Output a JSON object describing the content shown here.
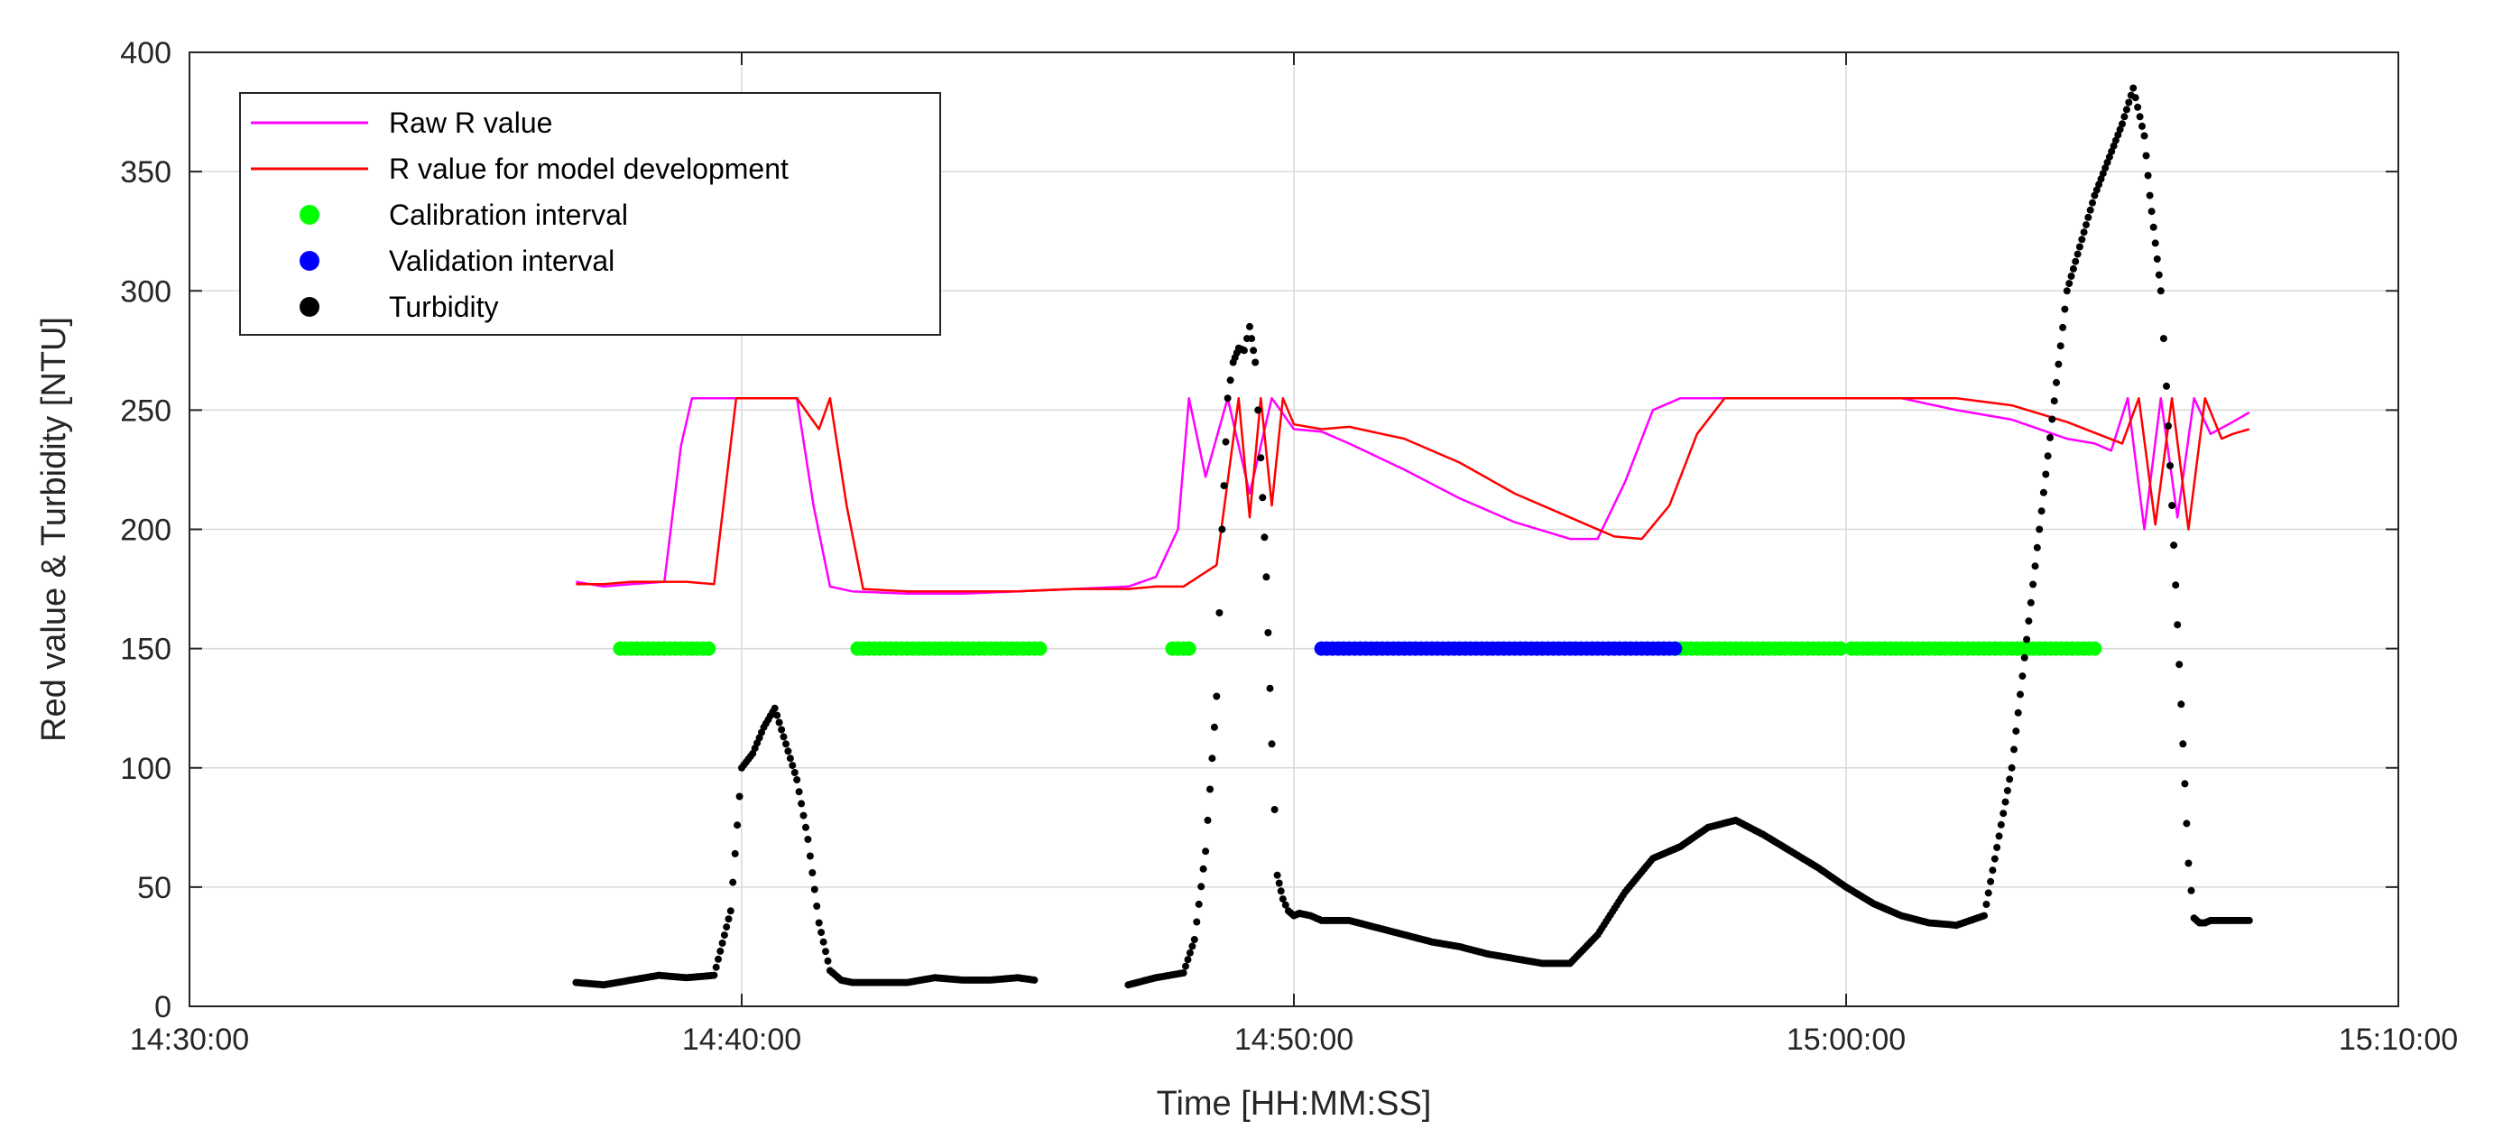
{
  "chart_data": {
    "type": "line",
    "title": "",
    "xlabel": "Time [HH:MM:SS]",
    "ylabel": "Red value & Turbidity [NTU]",
    "x_unit": "minutes since 14:30:00",
    "xlim": [
      0,
      40
    ],
    "ylim": [
      0,
      400
    ],
    "grid": true,
    "legend_position": "top-left",
    "x_ticks": [
      {
        "value": 0,
        "label": "14:30:00"
      },
      {
        "value": 10,
        "label": "14:40:00"
      },
      {
        "value": 20,
        "label": "14:50:00"
      },
      {
        "value": 30,
        "label": "15:00:00"
      },
      {
        "value": 40,
        "label": "15:10:00"
      }
    ],
    "y_ticks": [
      {
        "value": 0,
        "label": "0"
      },
      {
        "value": 50,
        "label": "50"
      },
      {
        "value": 100,
        "label": "100"
      },
      {
        "value": 150,
        "label": "150"
      },
      {
        "value": 200,
        "label": "200"
      },
      {
        "value": 250,
        "label": "250"
      },
      {
        "value": 300,
        "label": "300"
      },
      {
        "value": 350,
        "label": "350"
      },
      {
        "value": 400,
        "label": "400"
      }
    ],
    "series": [
      {
        "name": "Raw R value",
        "kind": "line",
        "color": "#ff00ff",
        "x": [
          7.0,
          7.5,
          8.0,
          8.6,
          8.9,
          9.1,
          10.0,
          10.6,
          11.0,
          11.3,
          11.6,
          12.0,
          13.0,
          14.0,
          15.0,
          16.0,
          17.0,
          17.5,
          17.9,
          18.1,
          18.4,
          18.8,
          19.2,
          19.6,
          20.0,
          20.5,
          21.0,
          22.0,
          23.0,
          24.0,
          25.0,
          25.5,
          26.0,
          26.5,
          27.0,
          28.0,
          29.0,
          30.0,
          31.0,
          32.0,
          33.0,
          34.0,
          34.5,
          34.8,
          35.1,
          35.4,
          35.7,
          36.0,
          36.3,
          36.6,
          37.0,
          37.3
        ],
        "y": [
          178,
          176,
          177,
          178,
          235,
          255,
          255,
          255,
          255,
          210,
          176,
          174,
          173,
          173,
          174,
          175,
          176,
          180,
          200,
          255,
          222,
          255,
          215,
          255,
          242,
          241,
          236,
          225,
          213,
          203,
          196,
          196,
          220,
          250,
          255,
          255,
          255,
          255,
          255,
          250,
          246,
          238,
          236,
          233,
          255,
          200,
          255,
          205,
          255,
          240,
          245,
          249
        ]
      },
      {
        "name": "R value for model development",
        "kind": "line",
        "color": "#ff0000",
        "x": [
          7.0,
          7.5,
          8.0,
          9.0,
          9.5,
          9.9,
          10.2,
          11.0,
          11.4,
          11.6,
          11.9,
          12.2,
          13.0,
          14.0,
          15.0,
          16.0,
          17.0,
          17.5,
          18.0,
          18.6,
          19.0,
          19.2,
          19.4,
          19.6,
          19.8,
          20.0,
          20.5,
          21.0,
          22.0,
          23.0,
          24.0,
          25.0,
          25.8,
          26.3,
          26.8,
          27.3,
          27.8,
          28.0,
          29.0,
          30.0,
          31.0,
          32.0,
          33.0,
          34.0,
          35.0,
          35.3,
          35.6,
          35.9,
          36.2,
          36.5,
          36.8,
          37.0,
          37.3
        ],
        "y": [
          177,
          177,
          178,
          178,
          177,
          255,
          255,
          255,
          242,
          255,
          210,
          175,
          174,
          174,
          174,
          175,
          175,
          176,
          176,
          185,
          255,
          205,
          255,
          210,
          255,
          244,
          242,
          243,
          238,
          228,
          215,
          205,
          197,
          196,
          210,
          240,
          255,
          255,
          255,
          255,
          255,
          255,
          252,
          245,
          236,
          255,
          202,
          255,
          200,
          255,
          238,
          240,
          242
        ]
      },
      {
        "name": "Turbidity",
        "kind": "markers",
        "color": "#000000",
        "x": [
          7.0,
          7.5,
          8.0,
          8.5,
          9.0,
          9.5,
          9.8,
          10.0,
          10.2,
          10.4,
          10.6,
          10.8,
          11.0,
          11.2,
          11.4,
          11.6,
          11.8,
          12.0,
          12.5,
          13.0,
          13.5,
          14.0,
          14.5,
          15.0,
          15.3,
          17.0,
          17.5,
          18.0,
          18.2,
          18.4,
          18.6,
          18.7,
          18.8,
          18.9,
          19.0,
          19.1,
          19.2,
          19.3,
          19.4,
          19.5,
          19.6,
          19.7,
          19.8,
          19.9,
          20.0,
          20.1,
          20.3,
          20.5,
          21.0,
          21.5,
          22.0,
          22.5,
          23.0,
          23.5,
          24.0,
          24.5,
          25.0,
          25.5,
          26.0,
          26.5,
          27.0,
          27.5,
          28.0,
          28.5,
          29.0,
          29.5,
          30.0,
          30.5,
          31.0,
          31.5,
          32.0,
          32.5,
          33.0,
          33.5,
          34.0,
          34.5,
          35.0,
          35.2,
          35.4,
          35.5,
          35.6,
          35.7,
          35.8,
          35.9,
          36.0,
          36.1,
          36.2,
          36.3,
          36.4,
          36.5,
          36.6,
          36.8,
          37.0,
          37.3
        ],
        "y": [
          10,
          9,
          11,
          13,
          12,
          13,
          40,
          100,
          106,
          117,
          125,
          110,
          95,
          70,
          35,
          15,
          11,
          10,
          10,
          10,
          12,
          11,
          11,
          12,
          11,
          9,
          12,
          14,
          28,
          65,
          130,
          200,
          255,
          270,
          276,
          275,
          285,
          270,
          230,
          180,
          110,
          55,
          45,
          40,
          38,
          39,
          38,
          36,
          36,
          33,
          30,
          27,
          25,
          22,
          20,
          18,
          18,
          30,
          48,
          62,
          67,
          75,
          78,
          72,
          65,
          58,
          50,
          43,
          38,
          35,
          34,
          38,
          100,
          200,
          300,
          340,
          370,
          385,
          365,
          340,
          320,
          300,
          260,
          210,
          160,
          110,
          60,
          37,
          35,
          35,
          36,
          36,
          36,
          36
        ]
      }
    ],
    "intervals": [
      {
        "name": "Calibration interval",
        "color": "#00ff00",
        "y": 150,
        "ranges": [
          [
            7.8,
            9.4
          ],
          [
            12.1,
            15.4
          ],
          [
            17.8,
            18.1
          ],
          [
            26.9,
            29.9
          ],
          [
            30.1,
            34.5
          ]
        ]
      },
      {
        "name": "Validation interval",
        "color": "#0000ff",
        "y": 150,
        "ranges": [
          [
            20.5,
            26.9
          ]
        ]
      }
    ],
    "legend": [
      {
        "label": "Raw R value",
        "marker": "line",
        "color": "#ff00ff"
      },
      {
        "label": "R value for model development",
        "marker": "line",
        "color": "#ff0000"
      },
      {
        "label": "Calibration interval",
        "marker": "dot",
        "color": "#00ff00"
      },
      {
        "label": "Validation interval",
        "marker": "dot",
        "color": "#0000ff"
      },
      {
        "label": "Turbidity",
        "marker": "dot",
        "color": "#000000"
      }
    ]
  }
}
